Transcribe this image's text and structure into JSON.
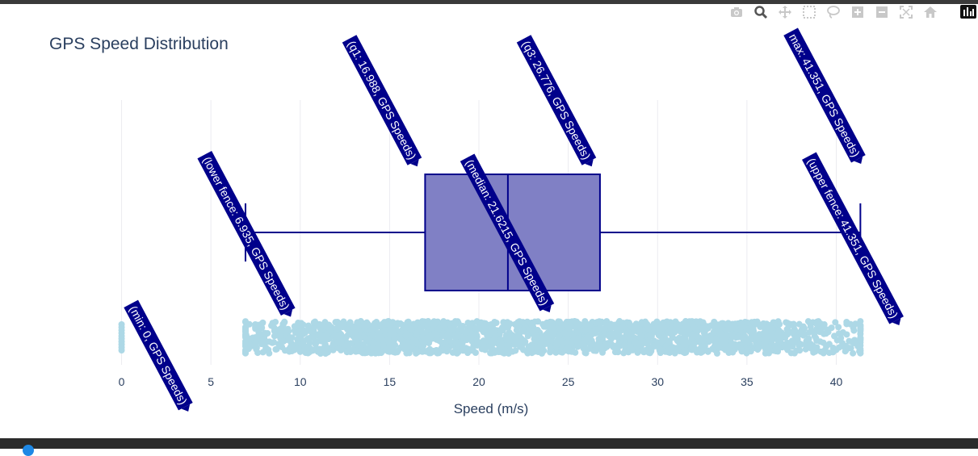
{
  "chart_data": {
    "type": "box",
    "title": "GPS Speed Distribution",
    "xlabel": "Speed (m/s)",
    "ylabel": "",
    "xlim": [
      -1.2,
      42.6
    ],
    "x_ticks": [
      0,
      5,
      10,
      15,
      20,
      25,
      30,
      35,
      40
    ],
    "x_tick_labels": [
      "0",
      "5",
      "10",
      "15",
      "20",
      "25",
      "30",
      "35",
      "40"
    ],
    "grid": true,
    "series": [
      {
        "name": "GPS Speeds",
        "stats": {
          "min": 0,
          "lower_fence": 6.935,
          "q1": 16.988,
          "median": 21.6215,
          "q3": 26.776,
          "upper_fence": 41.351,
          "max": 41.351
        },
        "box_color": "#00008b",
        "box_fill": "#8080c5",
        "points_color": "#add8e6",
        "points_range": [
          6.935,
          41.351
        ],
        "outliers": [
          0
        ]
      }
    ],
    "annotations": [
      {
        "key": "min",
        "text": "(min: 0, GPS Speeds)",
        "x": 0
      },
      {
        "key": "lower_fence",
        "text": "(lower fence: 6.935, GPS Speeds)",
        "x": 6.935
      },
      {
        "key": "q1",
        "text": "(q1: 16.988, GPS Speeds)",
        "x": 16.988
      },
      {
        "key": "median",
        "text": "(median: 21.6215, GPS Speeds)",
        "x": 21.6215
      },
      {
        "key": "q3",
        "text": "(q3: 26.776, GPS Speeds)",
        "x": 26.776
      },
      {
        "key": "max",
        "text": "max: 41.351, GPS Speeds)",
        "x": 41.351
      },
      {
        "key": "upper_fence",
        "text": "(upper fence: 41.351, GPS Speeds)",
        "x": 41.351
      }
    ],
    "annotation_color": "#00008b"
  },
  "modebar": {
    "icons": [
      "camera-icon",
      "zoom-icon",
      "pan-icon",
      "box-select-icon",
      "lasso-icon",
      "zoom-in-icon",
      "zoom-out-icon",
      "autoscale-icon",
      "home-icon"
    ]
  }
}
